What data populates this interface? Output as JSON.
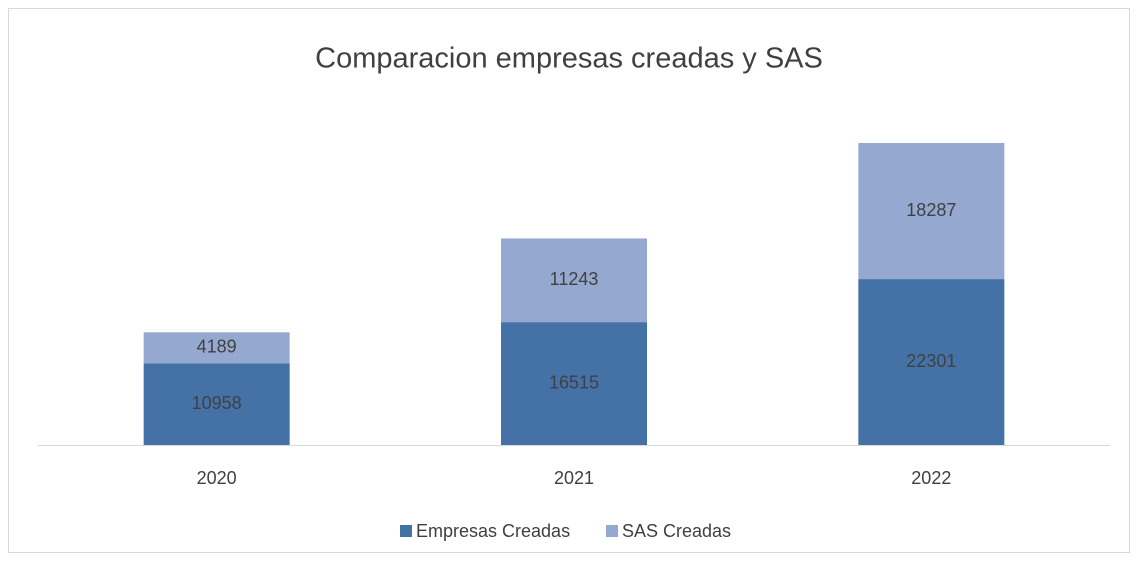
{
  "chart_data": {
    "type": "stacked_bar",
    "title": "Comparacion empresas creadas y SAS",
    "categories": [
      "2020",
      "2021",
      "2022"
    ],
    "series": [
      {
        "name": "Empresas Creadas",
        "color": "#4472a6",
        "values": [
          10958,
          16515,
          22301
        ]
      },
      {
        "name": "SAS Creadas",
        "color": "#95a9d0",
        "values": [
          4189,
          11243,
          18287
        ]
      }
    ],
    "legend": "bottom"
  }
}
